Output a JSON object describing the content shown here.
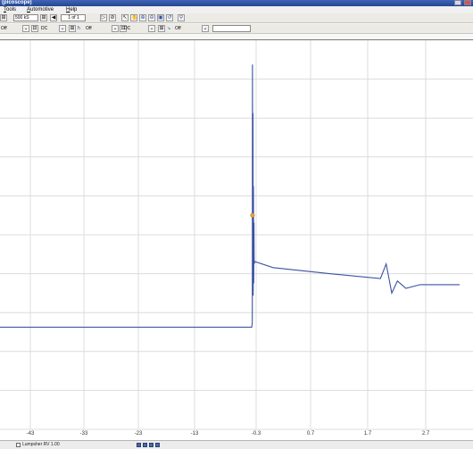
{
  "window": {
    "title": "(picoscope)"
  },
  "menu": {
    "items": [
      "Tools",
      "Automotive",
      "Help"
    ]
  },
  "toolbar1": {
    "samples_value": "500 kS",
    "page_counter": "1 of 1"
  },
  "toolbar2": {
    "channel_a_range": "Off",
    "channel_a_coupling": "DC",
    "channel_b_range": "Off",
    "channel_b_coupling": "DC",
    "trigger_mode": "Off",
    "trigger_value": ""
  },
  "chart": {
    "x_ticks": [
      "-43",
      "-33",
      "-23",
      "-13",
      "-0.3",
      "0.7",
      "1.7",
      "2.7"
    ],
    "trace_color": "#3a52a4",
    "grid_color": "#dcdcdc",
    "trigger_marker_color": "#e6a23c"
  },
  "chart_data": {
    "type": "line",
    "title": "",
    "xlabel": "",
    "ylabel": "",
    "x_ticks": [
      "-43",
      "-33",
      "-23",
      "-13",
      "-0.3",
      "0.7",
      "1.7",
      "2.7"
    ],
    "series": [
      {
        "points": [
          [
            -53,
            -3.8
          ],
          [
            -1.2,
            -3.8
          ],
          [
            -1.1,
            -3.6
          ],
          [
            -1.05,
            7.0
          ],
          [
            -1.0,
            -1.5
          ],
          [
            -0.95,
            5.0
          ],
          [
            -0.9,
            -2.5
          ],
          [
            -0.85,
            2.0
          ],
          [
            -0.8,
            -2.0
          ],
          [
            -0.75,
            0.5
          ],
          [
            -0.7,
            -1.2
          ],
          [
            -0.6,
            -1.1
          ],
          [
            0.0,
            -1.35
          ],
          [
            1.0,
            -1.6
          ],
          [
            1.9,
            -1.8
          ],
          [
            2.0,
            -1.2
          ],
          [
            2.1,
            -2.4
          ],
          [
            2.2,
            -1.9
          ],
          [
            2.35,
            -2.2
          ],
          [
            2.6,
            -2.05
          ],
          [
            3.3,
            -2.05
          ]
        ]
      }
    ],
    "trigger_point": [
      -1.05,
      0.8
    ],
    "grid": true,
    "legend": "none"
  },
  "status": {
    "text": "Lumpsher RV 1.00"
  },
  "icons": {
    "zoom": "zoom-icon",
    "select": "pointer-icon",
    "hand": "hand-icon",
    "undo": "undo-icon"
  }
}
